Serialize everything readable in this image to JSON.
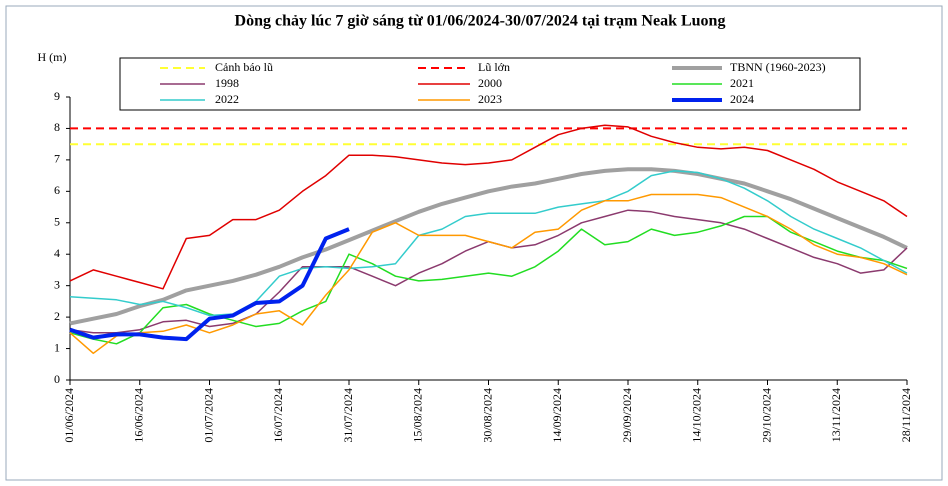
{
  "chart_data": {
    "type": "line",
    "title": "Dòng chảy lúc 7 giờ sáng từ 01/06/2024-30/07/2024 tại trạm Neak Luong",
    "y_label": "H (m)",
    "x": [
      "01/06/2024",
      "06/06/2024",
      "11/06/2024",
      "16/06/2024",
      "21/06/2024",
      "26/06/2024",
      "01/07/2024",
      "06/07/2024",
      "11/07/2024",
      "16/07/2024",
      "21/07/2024",
      "26/07/2024",
      "31/07/2024",
      "05/08/2024",
      "10/08/2024",
      "15/08/2024",
      "20/08/2024",
      "25/08/2024",
      "30/08/2024",
      "04/09/2024",
      "09/09/2024",
      "14/09/2024",
      "19/09/2024",
      "24/09/2024",
      "29/09/2024",
      "04/10/2024",
      "09/10/2024",
      "14/10/2024",
      "19/10/2024",
      "24/10/2024",
      "29/10/2024",
      "03/11/2024",
      "08/11/2024",
      "13/11/2024",
      "18/11/2024",
      "23/11/2024",
      "28/11/2024"
    ],
    "xlim": [
      "01/06/2024",
      "28/11/2024"
    ],
    "xticks": [
      "01/06/2024",
      "16/06/2024",
      "01/07/2024",
      "16/07/2024",
      "31/07/2024",
      "15/08/2024",
      "30/08/2024",
      "14/09/2024",
      "29/09/2024",
      "14/10/2024",
      "29/10/2024",
      "13/11/2024",
      "28/11/2024"
    ],
    "ylim": [
      0,
      9
    ],
    "yticks": [
      0,
      1,
      2,
      3,
      4,
      5,
      6,
      7,
      8,
      9
    ],
    "series": [
      {
        "name": "Cảnh báo lũ",
        "color": "#ffff33",
        "width": 2,
        "dash": true,
        "values": [
          7.5,
          7.5,
          7.5,
          7.5,
          7.5,
          7.5,
          7.5,
          7.5,
          7.5,
          7.5,
          7.5,
          7.5,
          7.5,
          7.5,
          7.5,
          7.5,
          7.5,
          7.5,
          7.5,
          7.5,
          7.5,
          7.5,
          7.5,
          7.5,
          7.5,
          7.5,
          7.5,
          7.5,
          7.5,
          7.5,
          7.5,
          7.5,
          7.5,
          7.5,
          7.5,
          7.5,
          7.5
        ]
      },
      {
        "name": "Lũ lớn",
        "color": "#ff0000",
        "width": 2,
        "dash": true,
        "values": [
          8,
          8,
          8,
          8,
          8,
          8,
          8,
          8,
          8,
          8,
          8,
          8,
          8,
          8,
          8,
          8,
          8,
          8,
          8,
          8,
          8,
          8,
          8,
          8,
          8,
          8,
          8,
          8,
          8,
          8,
          8,
          8,
          8,
          8,
          8,
          8,
          8
        ]
      },
      {
        "name": "TBNN (1960-2023)",
        "color": "#a0a0a0",
        "width": 4,
        "dash": false,
        "values": [
          1.8,
          1.95,
          2.1,
          2.35,
          2.55,
          2.85,
          3.0,
          3.15,
          3.35,
          3.6,
          3.9,
          4.15,
          4.45,
          4.75,
          5.05,
          5.35,
          5.6,
          5.8,
          6.0,
          6.15,
          6.25,
          6.4,
          6.55,
          6.65,
          6.7,
          6.7,
          6.65,
          6.55,
          6.4,
          6.25,
          6.0,
          5.75,
          5.45,
          5.15,
          4.85,
          4.55,
          4.2
        ]
      },
      {
        "name": "1998",
        "color": "#8b3a6e",
        "width": 1.5,
        "dash": false,
        "values": [
          1.6,
          1.5,
          1.5,
          1.6,
          1.85,
          1.9,
          1.7,
          1.8,
          2.1,
          2.8,
          3.6,
          3.6,
          3.6,
          3.3,
          3.0,
          3.4,
          3.7,
          4.1,
          4.4,
          4.2,
          4.3,
          4.6,
          5.0,
          5.2,
          5.4,
          5.35,
          5.2,
          5.1,
          5.0,
          4.8,
          4.5,
          4.2,
          3.9,
          3.7,
          3.4,
          3.5,
          4.2
        ]
      },
      {
        "name": "2000",
        "color": "#e00000",
        "width": 1.5,
        "dash": false,
        "values": [
          3.15,
          3.5,
          3.3,
          3.1,
          2.9,
          4.5,
          4.6,
          5.1,
          5.1,
          5.4,
          6.0,
          6.5,
          7.15,
          7.15,
          7.1,
          7.0,
          6.9,
          6.85,
          6.9,
          7.0,
          7.4,
          7.8,
          8.0,
          8.1,
          8.05,
          7.75,
          7.55,
          7.4,
          7.35,
          7.4,
          7.3,
          7.0,
          6.7,
          6.3,
          6.0,
          5.7,
          5.2
        ]
      },
      {
        "name": "2021",
        "color": "#22dd22",
        "width": 1.5,
        "dash": false,
        "values": [
          1.5,
          1.3,
          1.15,
          1.5,
          2.3,
          2.4,
          2.1,
          1.9,
          1.7,
          1.8,
          2.2,
          2.5,
          4.0,
          3.7,
          3.3,
          3.15,
          3.2,
          3.3,
          3.4,
          3.3,
          3.6,
          4.1,
          4.8,
          4.3,
          4.4,
          4.8,
          4.6,
          4.7,
          4.9,
          5.2,
          5.2,
          4.7,
          4.4,
          4.1,
          3.9,
          3.8,
          3.55
        ]
      },
      {
        "name": "2022",
        "color": "#33cccc",
        "width": 1.5,
        "dash": false,
        "values": [
          2.65,
          2.6,
          2.55,
          2.4,
          2.5,
          2.3,
          2.05,
          2.1,
          2.5,
          3.3,
          3.55,
          3.6,
          3.55,
          3.6,
          3.7,
          4.6,
          4.8,
          5.2,
          5.3,
          5.3,
          5.3,
          5.5,
          5.6,
          5.7,
          6.0,
          6.5,
          6.65,
          6.6,
          6.4,
          6.1,
          5.7,
          5.2,
          4.8,
          4.5,
          4.2,
          3.8,
          3.4
        ]
      },
      {
        "name": "2023",
        "color": "#ff9900",
        "width": 1.5,
        "dash": false,
        "values": [
          1.5,
          0.85,
          1.4,
          1.5,
          1.55,
          1.75,
          1.5,
          1.75,
          2.1,
          2.2,
          1.75,
          2.7,
          3.5,
          4.7,
          5.0,
          4.6,
          4.6,
          4.6,
          4.4,
          4.2,
          4.7,
          4.8,
          5.4,
          5.7,
          5.7,
          5.9,
          5.9,
          5.9,
          5.8,
          5.5,
          5.2,
          4.8,
          4.3,
          4.0,
          3.9,
          3.7,
          3.35
        ]
      },
      {
        "name": "2024",
        "color": "#0022ee",
        "width": 4,
        "dash": false,
        "values": [
          1.6,
          1.35,
          1.45,
          1.45,
          1.35,
          1.3,
          1.95,
          2.05,
          2.45,
          2.5,
          3.0,
          4.5,
          4.8,
          null,
          null,
          null,
          null,
          null,
          null,
          null,
          null,
          null,
          null,
          null,
          null,
          null,
          null,
          null,
          null,
          null,
          null,
          null,
          null,
          null,
          null,
          null,
          null
        ]
      }
    ]
  }
}
